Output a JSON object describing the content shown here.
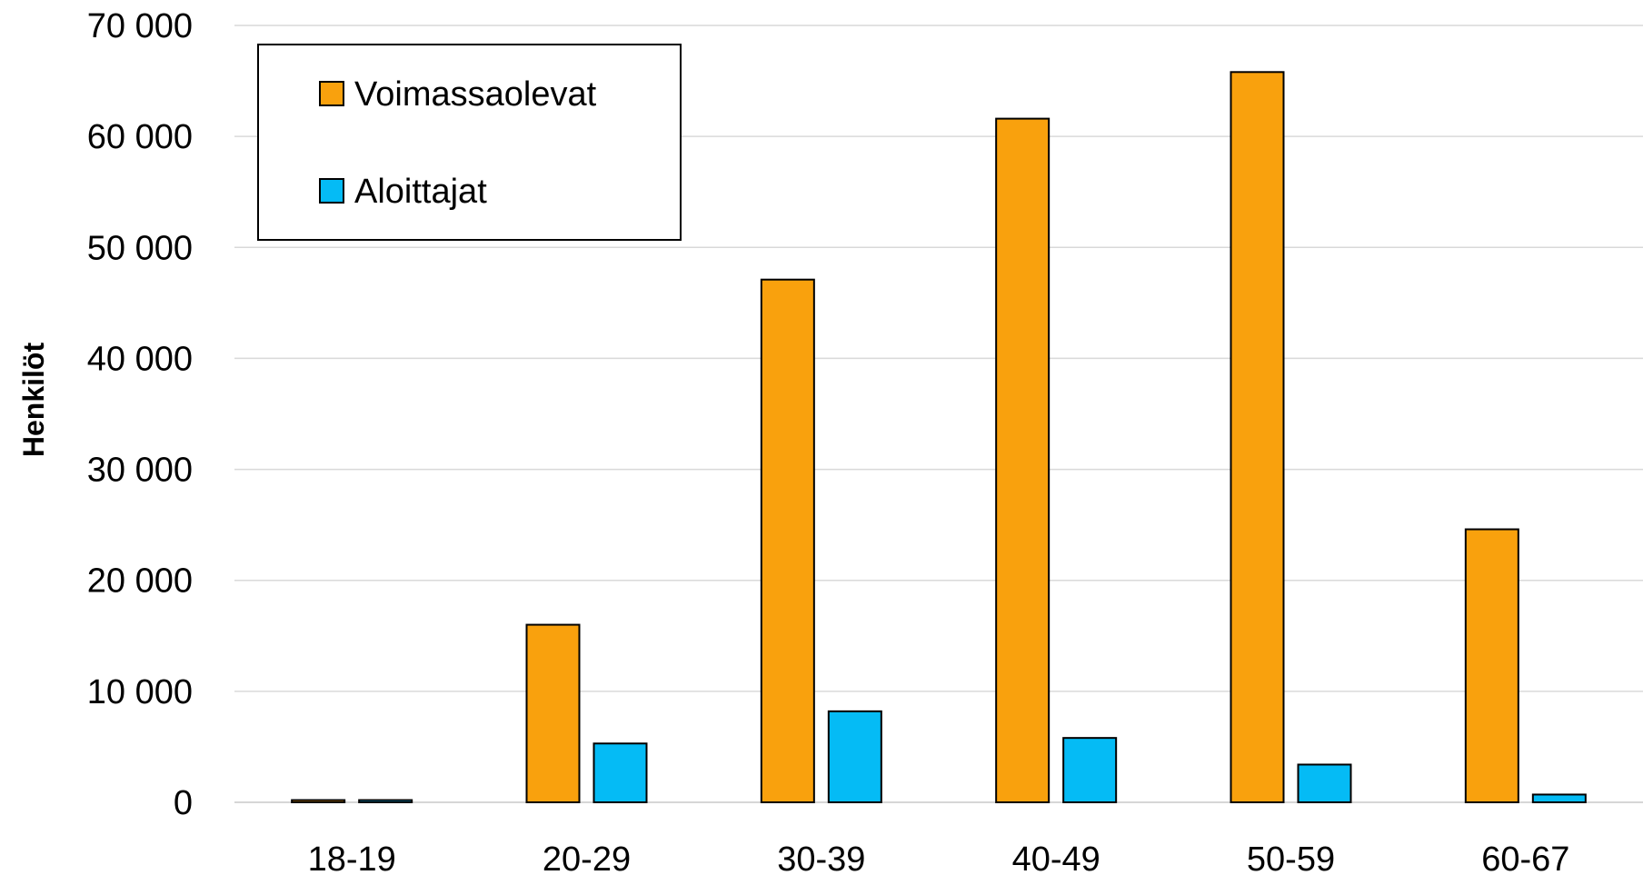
{
  "chart_data": {
    "type": "bar",
    "categories": [
      "18-19",
      "20-29",
      "30-39",
      "40-49",
      "50-59",
      "60-67"
    ],
    "series": [
      {
        "name": "Voimassaolevat",
        "color": "#F9A10D",
        "values": [
          200,
          16000,
          47100,
          61600,
          65800,
          24600
        ]
      },
      {
        "name": "Aloittajat",
        "color": "#05BBF5",
        "values": [
          200,
          5300,
          8200,
          5800,
          3400,
          700
        ]
      }
    ],
    "ylabel": "Henkilöt",
    "xlabel": "",
    "title": "",
    "ylim": [
      0,
      70000
    ],
    "yticks": [
      "0",
      "10 000",
      "20 000",
      "30 000",
      "40 000",
      "50 000",
      "60 000",
      "70 000"
    ],
    "grid": true,
    "legend_position": "top-left"
  }
}
